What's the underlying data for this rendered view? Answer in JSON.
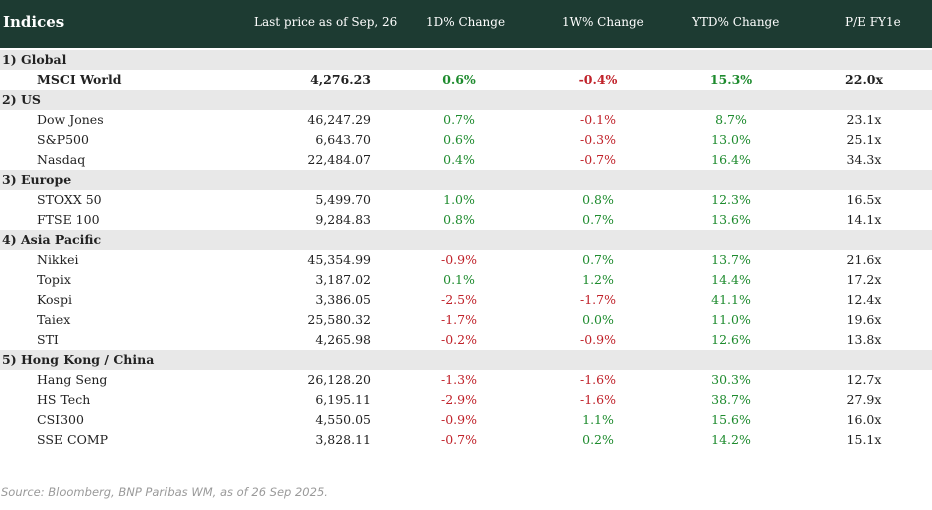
{
  "header": {
    "title": "Indices",
    "price": "Last price as of Sep, 26",
    "d1": "1D% Change",
    "w1": "1W% Change",
    "ytd": "YTD% Change",
    "pe": "P/E FY1e"
  },
  "sections": [
    {
      "label": "1) Global",
      "rows": [
        {
          "name": "MSCI World",
          "price": "4,276.23",
          "d1": "0.6%",
          "w1": "-0.4%",
          "ytd": "15.3%",
          "pe": "22.0x",
          "bold": true
        }
      ]
    },
    {
      "label": "2) US",
      "rows": [
        {
          "name": "Dow Jones",
          "price": "46,247.29",
          "d1": "0.7%",
          "w1": "-0.1%",
          "ytd": "8.7%",
          "pe": "23.1x"
        },
        {
          "name": "S&P500",
          "price": "6,643.70",
          "d1": "0.6%",
          "w1": "-0.3%",
          "ytd": "13.0%",
          "pe": "25.1x"
        },
        {
          "name": "Nasdaq",
          "price": "22,484.07",
          "d1": "0.4%",
          "w1": "-0.7%",
          "ytd": "16.4%",
          "pe": "34.3x"
        }
      ]
    },
    {
      "label": "3) Europe",
      "rows": [
        {
          "name": "STOXX 50",
          "price": "5,499.70",
          "d1": "1.0%",
          "w1": "0.8%",
          "ytd": "12.3%",
          "pe": "16.5x"
        },
        {
          "name": "FTSE 100",
          "price": "9,284.83",
          "d1": "0.8%",
          "w1": "0.7%",
          "ytd": "13.6%",
          "pe": "14.1x"
        }
      ]
    },
    {
      "label": "4) Asia Pacific",
      "rows": [
        {
          "name": "Nikkei",
          "price": "45,354.99",
          "d1": "-0.9%",
          "w1": "0.7%",
          "ytd": "13.7%",
          "pe": "21.6x"
        },
        {
          "name": "Topix",
          "price": "3,187.02",
          "d1": "0.1%",
          "w1": "1.2%",
          "ytd": "14.4%",
          "pe": "17.2x"
        },
        {
          "name": "Kospi",
          "price": "3,386.05",
          "d1": "-2.5%",
          "w1": "-1.7%",
          "ytd": "41.1%",
          "pe": "12.4x"
        },
        {
          "name": "Taiex",
          "price": "25,580.32",
          "d1": "-1.7%",
          "w1": "0.0%",
          "ytd": "11.0%",
          "pe": "19.6x"
        },
        {
          "name": "STI",
          "price": "4,265.98",
          "d1": "-0.2%",
          "w1": "-0.9%",
          "ytd": "12.6%",
          "pe": "13.8x"
        }
      ]
    },
    {
      "label": "5) Hong Kong / China",
      "rows": [
        {
          "name": "Hang Seng",
          "price": "26,128.20",
          "d1": "-1.3%",
          "w1": "-1.6%",
          "ytd": "30.3%",
          "pe": "12.7x"
        },
        {
          "name": "HS Tech",
          "price": "6,195.11",
          "d1": "-2.9%",
          "w1": "-1.6%",
          "ytd": "38.7%",
          "pe": "27.9x"
        },
        {
          "name": "CSI300",
          "price": "4,550.05",
          "d1": "-0.9%",
          "w1": "1.1%",
          "ytd": "15.6%",
          "pe": "16.0x"
        },
        {
          "name": "SSE COMP",
          "price": "3,828.11",
          "d1": "-0.7%",
          "w1": "0.2%",
          "ytd": "14.2%",
          "pe": "15.1x"
        }
      ]
    }
  ],
  "source": "Source: Bloomberg, BNP Paribas WM, as of 26 Sep 2025.",
  "colors": {
    "header_bg": "#1d3b32",
    "positive": "#1e8b2e",
    "negative": "#c0222a",
    "section_bg": "#e8e8e8"
  }
}
